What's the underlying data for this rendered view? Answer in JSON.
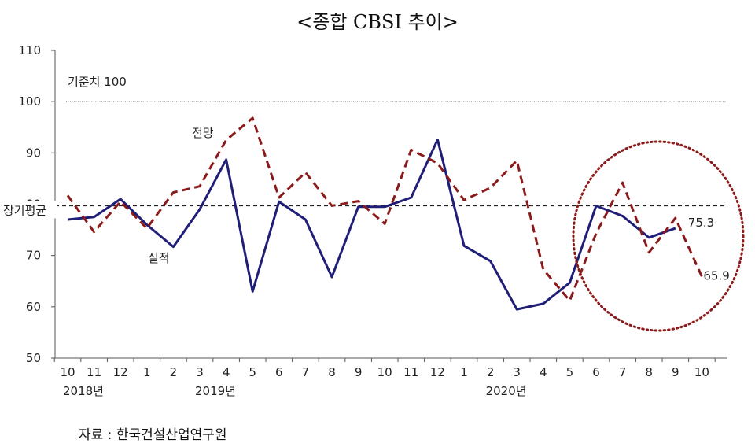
{
  "title": "<종합 CBSI 추이>",
  "source": "자료 : 한국건설산업연구원",
  "chart_data": {
    "type": "line",
    "categories": [
      "10",
      "11",
      "12",
      "1",
      "2",
      "3",
      "4",
      "5",
      "6",
      "7",
      "8",
      "9",
      "10",
      "11",
      "12",
      "1",
      "2",
      "3",
      "4",
      "5",
      "6",
      "7",
      "8",
      "9",
      "10"
    ],
    "year_labels": [
      {
        "label": "2018년",
        "index": 0
      },
      {
        "label": "2019년",
        "index": 5
      },
      {
        "label": "2020년",
        "index": 16
      }
    ],
    "y_ticks": [
      50,
      60,
      70,
      80,
      90,
      100,
      110
    ],
    "ylim": [
      50,
      110
    ],
    "series": [
      {
        "name": "실적",
        "style": "solid",
        "color": "#1f1f78",
        "values": [
          77.0,
          77.5,
          81.0,
          76.0,
          71.7,
          79.0,
          88.7,
          63.0,
          80.5,
          77.0,
          65.8,
          79.5,
          79.5,
          81.3,
          92.6,
          71.9,
          68.9,
          59.5,
          60.6,
          64.7,
          79.7,
          77.7,
          73.5,
          75.3,
          null
        ]
      },
      {
        "name": "전망",
        "style": "dashed",
        "color": "#8b1a1a",
        "values": [
          81.7,
          74.6,
          80.5,
          75.3,
          82.3,
          83.5,
          92.5,
          96.8,
          81.3,
          86.2,
          79.7,
          80.6,
          76.2,
          90.6,
          88.0,
          80.8,
          83.2,
          88.5,
          67.3,
          61.2,
          74.3,
          84.2,
          70.6,
          77.3,
          65.9
        ]
      }
    ],
    "reference_lines": [
      {
        "label": "기준치 100",
        "value": 100,
        "style": "dotted"
      },
      {
        "label": "장기평균",
        "value": 79.7,
        "style": "dashed"
      }
    ],
    "annotations": [
      {
        "text": "전망",
        "near": "dashed-series"
      },
      {
        "text": "실적",
        "near": "solid-series"
      },
      {
        "text": "75.3",
        "series": 0,
        "index": 23
      },
      {
        "text": "65.9",
        "series": 1,
        "index": 24
      }
    ],
    "grid": false,
    "highlight": {
      "type": "dotted-circle",
      "from_index": 20,
      "to_index": 24,
      "color": "#8b1a1a"
    }
  }
}
